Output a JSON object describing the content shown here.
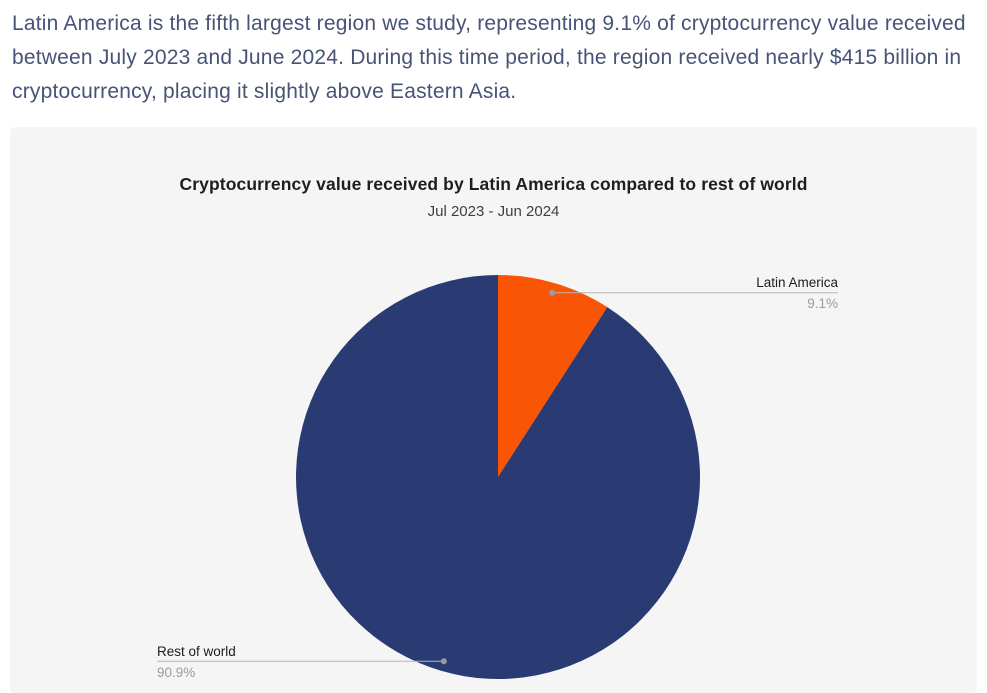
{
  "intro_paragraph": "Latin America is the fifth largest region we study, representing 9.1% of cryptocurrency value received between July 2023 and June 2024. During this time period, the region received nearly $415 billion in cryptocurrency, placing it slightly above Eastern Asia.",
  "chart_data": {
    "type": "pie",
    "title": "Cryptocurrency value received by Latin America compared to rest of world",
    "subtitle": "Jul 2023 - Jun 2024",
    "unit": "%",
    "start_angle_deg": 0,
    "direction": "clockwise",
    "legend": "none",
    "leader_line_color": "#b6b6b6",
    "leader_dot_color": "#9b9b9b",
    "label_color": "#1c1c1c",
    "pct_label_color": "#9b9b9b",
    "slices": [
      {
        "id": "latin-america",
        "name": "Latin America",
        "value": 9.1,
        "pct_label": "9.1%",
        "color": "#fa5405",
        "label_side": "right"
      },
      {
        "id": "rest-of-world",
        "name": "Rest of world",
        "value": 90.9,
        "pct_label": "90.9%",
        "color": "#293b72",
        "label_side": "left"
      }
    ]
  },
  "page_colors": {
    "background": "#ffffff",
    "card_background": "#f5f5f6",
    "paragraph_text": "#475377"
  }
}
